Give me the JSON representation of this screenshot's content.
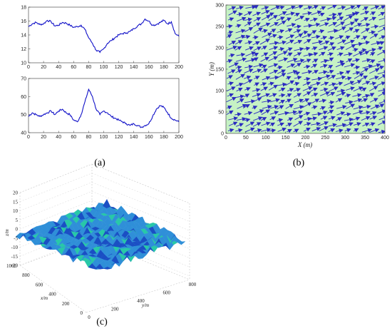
{
  "panels": {
    "a": "(a)",
    "b": "(b)",
    "c": "(c)"
  },
  "chart_data": [
    {
      "id": "a-top",
      "type": "line",
      "xlim": [
        0,
        200
      ],
      "ylim": [
        10,
        18
      ],
      "xticks": [
        0,
        20,
        40,
        60,
        80,
        100,
        120,
        140,
        160,
        180,
        200
      ],
      "yticks": [
        10,
        12,
        14,
        16,
        18
      ],
      "color": "#1010c8",
      "series": [
        {
          "x": [
            0,
            5,
            10,
            15,
            20,
            25,
            30,
            35,
            40,
            45,
            50,
            55,
            60,
            65,
            70,
            75,
            80,
            85,
            90,
            95,
            100,
            105,
            110,
            115,
            120,
            125,
            130,
            135,
            140,
            145,
            150,
            155,
            160,
            165,
            170,
            175,
            180,
            185,
            190,
            195,
            200
          ],
          "y": [
            15.2,
            15.6,
            15.8,
            15.5,
            15.6,
            16.1,
            15.9,
            15.3,
            15.4,
            15.8,
            15.7,
            15.4,
            15.1,
            15.2,
            15.4,
            14.8,
            13.6,
            12.8,
            11.8,
            11.5,
            12.0,
            12.8,
            13.2,
            13.6,
            14.0,
            14.2,
            14.3,
            14.5,
            14.9,
            15.3,
            15.6,
            16.3,
            16.0,
            15.4,
            15.5,
            15.8,
            16.1,
            15.6,
            15.9,
            14.2,
            13.8
          ]
        }
      ]
    },
    {
      "id": "a-bottom",
      "type": "line",
      "xlim": [
        0,
        200
      ],
      "ylim": [
        40,
        70
      ],
      "xticks": [
        0,
        20,
        40,
        60,
        80,
        100,
        120,
        140,
        160,
        180,
        200
      ],
      "yticks": [
        40,
        50,
        60,
        70
      ],
      "color": "#1010c8",
      "series": [
        {
          "x": [
            0,
            5,
            10,
            15,
            20,
            25,
            30,
            35,
            40,
            45,
            50,
            55,
            60,
            65,
            70,
            75,
            80,
            85,
            90,
            95,
            100,
            105,
            110,
            115,
            120,
            125,
            130,
            135,
            140,
            145,
            150,
            155,
            160,
            165,
            170,
            175,
            180,
            185,
            190,
            195,
            200
          ],
          "y": [
            49,
            51,
            50,
            49,
            50,
            51,
            52,
            50,
            52,
            53,
            51,
            50,
            47,
            46,
            50,
            57,
            64,
            60,
            53,
            50,
            52,
            51,
            49,
            48,
            47,
            46,
            45,
            44,
            45,
            44,
            43,
            44,
            45,
            49,
            53,
            55,
            54,
            51,
            48,
            47,
            46
          ]
        }
      ]
    },
    {
      "id": "b",
      "type": "quiver",
      "xlim": [
        0,
        400
      ],
      "ylim": [
        0,
        300
      ],
      "xticks": [
        0,
        50,
        100,
        150,
        200,
        250,
        300,
        350,
        400
      ],
      "yticks": [
        0,
        50,
        100,
        150,
        200,
        250,
        300
      ],
      "xlabel": "X (m)",
      "ylabel": "Y (m)",
      "background": "#c6f2c4",
      "arrow_color": "#2b2bc0",
      "nx": 19,
      "ny": 22,
      "direction_deg": 20,
      "arrow_length": 32
    },
    {
      "id": "c",
      "type": "surface",
      "xlabel": "x/m",
      "ylabel": "y/m",
      "zlabel": "z/m",
      "xticks": [
        0,
        200,
        400,
        600,
        800,
        1000
      ],
      "yticks": [
        0,
        200,
        400,
        600,
        800
      ],
      "zticks": [
        -20,
        -15,
        -10,
        -5,
        0,
        5,
        10,
        15,
        20
      ],
      "zlim": [
        -20,
        20
      ],
      "surface_colors": [
        "#1a4fc4",
        "#2f8fd8",
        "#28c8a8"
      ]
    }
  ]
}
